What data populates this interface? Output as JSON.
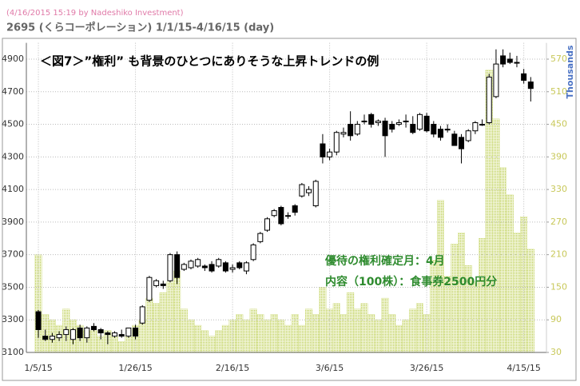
{
  "chart_data": {
    "type": "candlestick",
    "stamp": "(4/16/2015 15:19 by Nadeshiko Investment)",
    "title": "2695 (くらコーポレーション) 1/1/15-4/16/15 (day)",
    "annotation": "＜図7＞”権利” も背景のひとつにありそうな上昇トレンドの例",
    "notes": [
      "優待の権利確定月：4月",
      "内容（100株）：食事券2500円分"
    ],
    "y2_label": "Thousands",
    "categories": [
      "1/5/15",
      null,
      null,
      null,
      null,
      null,
      null,
      null,
      null,
      null,
      null,
      null,
      null,
      null,
      "1/26/15",
      null,
      null,
      null,
      null,
      null,
      null,
      null,
      null,
      null,
      null,
      null,
      null,
      null,
      "2/16/15",
      null,
      null,
      null,
      null,
      null,
      null,
      null,
      null,
      null,
      null,
      null,
      null,
      null,
      "3/6/15",
      null,
      null,
      null,
      null,
      null,
      null,
      null,
      null,
      null,
      null,
      null,
      null,
      null,
      "3/26/15",
      null,
      null,
      null,
      null,
      null,
      null,
      null,
      null,
      null,
      null,
      null,
      null,
      null,
      "4/15/15",
      null
    ],
    "open": [
      3350,
      3200,
      3180,
      3190,
      3210,
      3180,
      3250,
      3190,
      3260,
      3240,
      3220,
      3200,
      3210,
      3200,
      3250,
      3280,
      3420,
      3510,
      3520,
      3540,
      3700,
      3610,
      3620,
      3630,
      3630,
      3640,
      3630,
      3650,
      3610,
      3650,
      3600,
      3670,
      3780,
      3850,
      3940,
      3990,
      3940,
      4000,
      4060,
      4080,
      4000,
      4380,
      4300,
      4330,
      4440,
      4500,
      4440,
      4520,
      4560,
      4510,
      4520,
      4500,
      4500,
      4520,
      4500,
      4470,
      4550,
      4500,
      4470,
      4470,
      4440,
      4420,
      4400,
      4460,
      4500,
      4510,
      4670,
      4920,
      4900,
      4880,
      4810,
      4760
    ],
    "high": [
      3360,
      3240,
      3220,
      3230,
      3260,
      3250,
      3270,
      3260,
      3280,
      3250,
      3230,
      3230,
      3240,
      3250,
      3270,
      3390,
      3570,
      3550,
      3540,
      3710,
      3720,
      3650,
      3670,
      3680,
      3640,
      3660,
      3680,
      3660,
      3640,
      3660,
      3660,
      3770,
      3840,
      3930,
      3980,
      4000,
      3960,
      4010,
      4140,
      4120,
      4160,
      4440,
      4350,
      4460,
      4480,
      4580,
      4520,
      4560,
      4570,
      4530,
      4540,
      4520,
      4530,
      4560,
      4550,
      4570,
      4570,
      4520,
      4490,
      4500,
      4460,
      4440,
      4470,
      4520,
      4530,
      4810,
      4960,
      4960,
      4940,
      4920,
      4840,
      4790
    ],
    "low": [
      3190,
      3170,
      3160,
      3170,
      3170,
      3150,
      3170,
      3160,
      3230,
      3180,
      3150,
      3190,
      3190,
      3190,
      3180,
      3270,
      3410,
      3500,
      3490,
      3530,
      3520,
      3600,
      3610,
      3620,
      3600,
      3590,
      3620,
      3590,
      3590,
      3610,
      3580,
      3660,
      3770,
      3840,
      3930,
      3880,
      3920,
      3940,
      4050,
      4060,
      3990,
      4260,
      4280,
      4310,
      4420,
      4400,
      4430,
      4500,
      4480,
      4490,
      4300,
      4450,
      4490,
      4480,
      4440,
      4460,
      4450,
      4420,
      4400,
      4450,
      4370,
      4260,
      4390,
      4440,
      4490,
      4500,
      4660,
      4850,
      4870,
      4850,
      4750,
      4640
    ],
    "close": [
      3240,
      3180,
      3200,
      3210,
      3240,
      3240,
      3190,
      3250,
      3240,
      3220,
      3210,
      3220,
      3200,
      3250,
      3200,
      3380,
      3560,
      3540,
      3510,
      3700,
      3560,
      3640,
      3660,
      3670,
      3620,
      3600,
      3670,
      3600,
      3620,
      3620,
      3650,
      3760,
      3830,
      3920,
      3970,
      3890,
      3940,
      3960,
      4130,
      4100,
      4150,
      4300,
      4330,
      4450,
      4450,
      4430,
      4500,
      4520,
      4500,
      4520,
      4430,
      4470,
      4510,
      4520,
      4450,
      4560,
      4460,
      4440,
      4420,
      4470,
      4370,
      4350,
      4460,
      4510,
      4500,
      4790,
      4870,
      4870,
      4880,
      4880,
      4770,
      4720
    ],
    "volume": [
      210,
      100,
      90,
      80,
      110,
      90,
      80,
      70,
      70,
      60,
      70,
      60,
      50,
      60,
      80,
      90,
      130,
      120,
      140,
      160,
      180,
      110,
      90,
      80,
      70,
      60,
      70,
      80,
      90,
      100,
      90,
      110,
      100,
      90,
      100,
      90,
      80,
      100,
      80,
      110,
      100,
      150,
      110,
      120,
      100,
      140,
      110,
      120,
      100,
      90,
      130,
      100,
      80,
      90,
      110,
      120,
      100,
      200,
      310,
      170,
      230,
      250,
      190,
      160,
      240,
      550,
      460,
      370,
      320,
      250,
      280,
      220
    ],
    "up_color": "#ffffff",
    "down_color": "#000000",
    "volume_color": "#c8d86a",
    "ylim": [
      3100,
      5000
    ],
    "yticks": [
      3100,
      3300,
      3500,
      3700,
      3900,
      4100,
      4300,
      4500,
      4700,
      4900
    ],
    "y2lim": [
      30,
      600
    ],
    "y2ticks": [
      30,
      90,
      150,
      210,
      270,
      330,
      390,
      450,
      510,
      570
    ],
    "grid": true
  }
}
